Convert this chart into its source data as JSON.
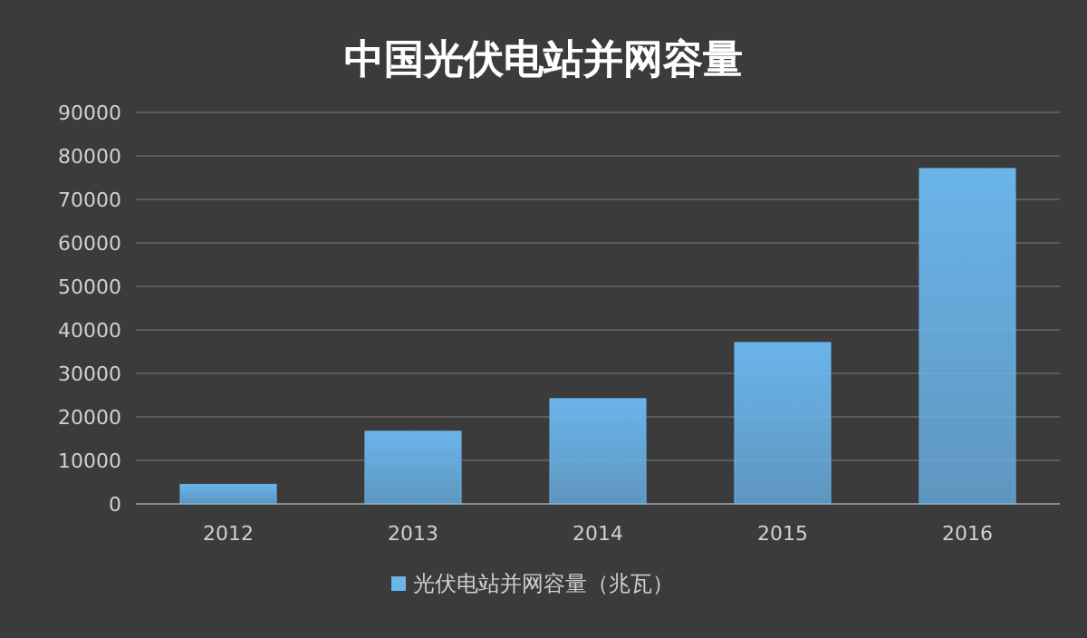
{
  "chart_data": {
    "type": "bar",
    "title": "中国光伏电站并网容量",
    "categories": [
      "2012",
      "2013",
      "2014",
      "2015",
      "2016"
    ],
    "series": [
      {
        "name": "光伏电站并网容量（兆瓦）",
        "color": "#6ab4ea",
        "values": [
          4500,
          16700,
          24200,
          37100,
          77100
        ]
      }
    ],
    "ylim": [
      0,
      90000
    ],
    "yticks": [
      0,
      10000,
      20000,
      30000,
      40000,
      50000,
      60000,
      70000,
      80000,
      90000
    ],
    "grid": "y",
    "legend": "bottom"
  }
}
